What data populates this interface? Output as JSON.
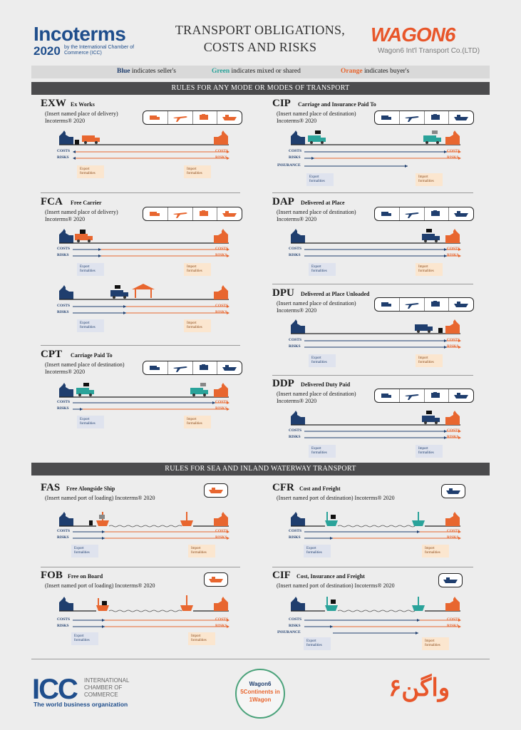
{
  "header": {
    "incoterms_logo": "Incoterms",
    "incoterms_year": "2020",
    "incoterms_by": "by the International Chamber of Commerce (ICC)",
    "title_line1": "TRANSPORT OBLIGATIONS,",
    "title_line2": "COSTS AND RISKS",
    "wagon_logo": "WAGON6",
    "wagon_sub": "Wagon6 Int'l Transport Co.(LTD)"
  },
  "legend": {
    "blue_word": "Blue",
    "blue_text": "indicates seller's",
    "green_word": "Green",
    "green_text": "indicates mixed or shared",
    "orange_word": "Orange",
    "orange_text": "indicates buyer's"
  },
  "sections": {
    "any_mode": "RULES FOR ANY MODE OR MODES OF TRANSPORT",
    "sea": "RULES FOR SEA AND INLAND WATERWAY TRANSPORT"
  },
  "labels": {
    "costs": "COSTS",
    "risks": "RISKS",
    "insurance": "INSURANCE",
    "export_formalities": "Export formalities",
    "import_formalities": "Import formalities"
  },
  "rules": {
    "exw": {
      "code": "EXW",
      "name": "Ex Works",
      "desc": "(Insert named place of delivery) Incoterms® 2020"
    },
    "fca": {
      "code": "FCA",
      "name": "Free Carrier",
      "desc": "(Insert named place of delivery) Incoterms® 2020"
    },
    "cpt": {
      "code": "CPT",
      "name": "Carriage Paid To",
      "desc": "(Insert named place of destination) Incoterms® 2020"
    },
    "cip": {
      "code": "CIP",
      "name": "Carriage and Insurance Paid To",
      "desc": "(Insert named place of destination) Incoterms® 2020"
    },
    "dap": {
      "code": "DAP",
      "name": "Delivered at Place",
      "desc": "(Insert named place of destination) Incoterms® 2020"
    },
    "dpu": {
      "code": "DPU",
      "name": "Delivered at Place Unloaded",
      "desc": "(Insert named place of destination) Incoterms® 2020"
    },
    "ddp": {
      "code": "DDP",
      "name": "Delivered Duty Paid",
      "desc": "(Insert named place of destination) Incoterms® 2020"
    },
    "fas": {
      "code": "FAS",
      "name": "Free Alongside Ship",
      "desc": "(Insert named port of loading) Incoterms® 2020"
    },
    "fob": {
      "code": "FOB",
      "name": "Free on Board",
      "desc": "(Insert named port of loading) Incoterms® 2020"
    },
    "cfr": {
      "code": "CFR",
      "name": "Cost and Freight",
      "desc": "(Insert named port of destination) Incoterms® 2020"
    },
    "cif": {
      "code": "CIF",
      "name": "Cost, Insurance and Freight",
      "desc": "(Insert named port of destination) Incoterms® 2020"
    }
  },
  "footer": {
    "icc_logo": "ICC",
    "icc_name": "INTERNATIONAL CHAMBER OF COMMERCE",
    "icc_tag": "The world business organization",
    "badge_line1": "Wagon6",
    "badge_line2": "5Continents in",
    "badge_line3": "1Wagon",
    "fa_logo": "واگن۶"
  },
  "colors": {
    "blue": "#1f3e6e",
    "green": "#2aa39a",
    "orange": "#e8662f",
    "bar": "#4b4b4d"
  }
}
